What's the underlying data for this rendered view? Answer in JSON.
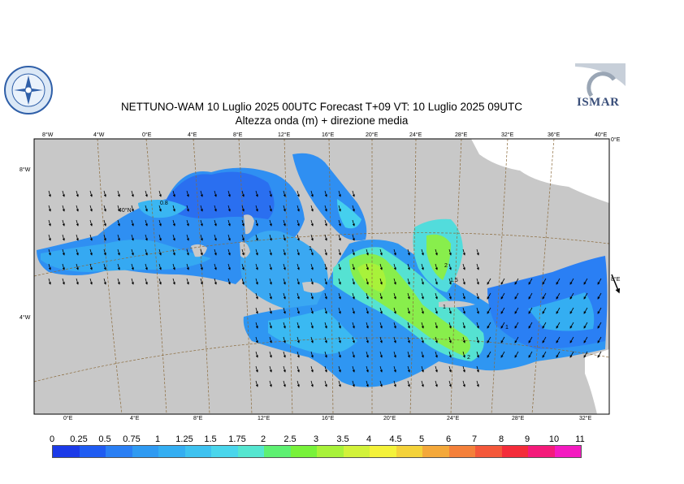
{
  "header": {
    "title_line1": "NETTUNO-WAM  10  Luglio   2025 00UTC Forecast T+09 VT: 10  Luglio   2025 09UTC",
    "title_line2": "Altezza onda (m) + direzione media"
  },
  "logos": {
    "left": "circular-emblem",
    "right": "ISMAR"
  },
  "map": {
    "top_lon_labels": [
      "8°W",
      "4°W",
      "0°E",
      "4°E",
      "8°E",
      "12°E",
      "16°E",
      "20°E",
      "24°E",
      "28°E",
      "32°E",
      "36°E",
      "40°E"
    ],
    "bottom_lon_labels": [
      "0°E",
      "4°E",
      "8°E",
      "12°E",
      "16°E",
      "20°E",
      "24°E",
      "28°E",
      "32°E"
    ],
    "left_lat_labels": [
      "8°W",
      "4°W"
    ],
    "right_lat_labels": [
      "0°E",
      "8°E"
    ],
    "inline_labels": [
      "40°N",
      "0.8",
      "1",
      "2",
      "1.5",
      "1",
      "1",
      "2"
    ]
  },
  "legend": {
    "labels": [
      "0",
      "0.25",
      "0.5",
      "0.75",
      "1",
      "1.25",
      "1.5",
      "1.75",
      "2",
      "2.5",
      "3",
      "3.5",
      "4",
      "4.5",
      "5",
      "6",
      "7",
      "8",
      "9",
      "10",
      "11"
    ],
    "colors": [
      "#1b3ae8",
      "#1f5cf2",
      "#2a7ff4",
      "#2f9af2",
      "#34aef2",
      "#3ec2f0",
      "#4ad6ec",
      "#55e6d0",
      "#5ef072",
      "#78f23a",
      "#a8f23a",
      "#d2f23a",
      "#f4f23a",
      "#f4d23a",
      "#f4a83a",
      "#f4803a",
      "#f4583a",
      "#f42c3a",
      "#f41a7a",
      "#f41ac0"
    ]
  }
}
